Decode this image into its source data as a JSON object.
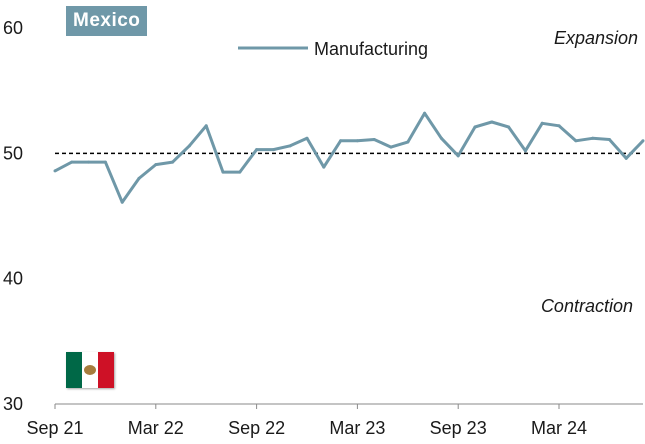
{
  "chart_data": {
    "type": "line",
    "title": "Mexico",
    "x": [
      "Sep 21",
      "Oct 21",
      "Nov 21",
      "Dec 21",
      "Jan 22",
      "Feb 22",
      "Mar 22",
      "Apr 22",
      "May 22",
      "Jun 22",
      "Jul 22",
      "Aug 22",
      "Sep 22",
      "Oct 22",
      "Nov 22",
      "Dec 22",
      "Jan 23",
      "Feb 23",
      "Mar 23",
      "Apr 23",
      "May 23",
      "Jun 23",
      "Jul 23",
      "Aug 23",
      "Sep 23",
      "Oct 23",
      "Nov 23",
      "Dec 23",
      "Jan 24",
      "Feb 24",
      "Mar 24",
      "Apr 24",
      "May 24",
      "Jun 24",
      "Jul 24",
      "Aug 24"
    ],
    "x_tick_labels": [
      "Sep 21",
      "Mar 22",
      "Sep 22",
      "Mar 23",
      "Sep 23",
      "Mar 24"
    ],
    "series": [
      {
        "name": "Manufacturing",
        "values": [
          48.6,
          49.3,
          49.3,
          49.3,
          46.1,
          48.0,
          49.1,
          49.3,
          50.6,
          52.2,
          48.5,
          48.5,
          50.3,
          50.3,
          50.6,
          51.2,
          48.9,
          51.0,
          51.0,
          51.1,
          50.5,
          50.9,
          53.2,
          51.2,
          49.8,
          52.1,
          52.5,
          52.1,
          50.2,
          52.4,
          52.2,
          51.0,
          51.2,
          51.1,
          49.6,
          51.0
        ]
      }
    ],
    "reference_line": 50,
    "ylim": [
      30,
      60
    ],
    "y_ticks": [
      30,
      40,
      50,
      60
    ],
    "annotations": {
      "top": "Expansion",
      "bottom": "Contraction"
    },
    "colors": {
      "line": "#6f98a8",
      "reference": "#000000",
      "title_bg": "#6f98a8"
    }
  },
  "flag": {
    "icon": "mexico-flag-icon",
    "colors": [
      "#006847",
      "#ffffff",
      "#ce1126"
    ]
  }
}
